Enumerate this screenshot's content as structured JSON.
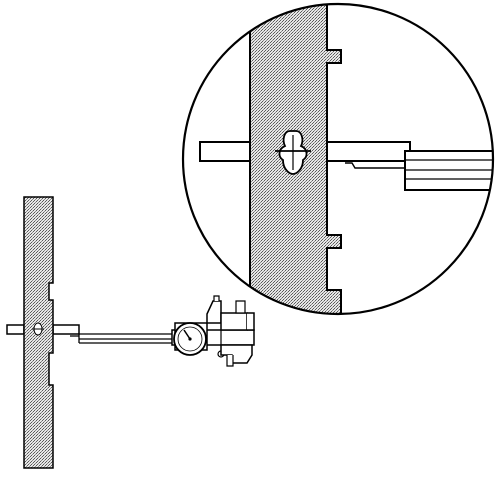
{
  "diagram": {
    "subject": "caliper-measuring-slotted-shaft",
    "colors": {
      "line": "#000000",
      "fill": "#ffffff",
      "hatch": "#5a5a5a",
      "hatch_bg": "#e6e6e6"
    },
    "icons": [
      "dial-caliper-icon",
      "slotted-bar-icon",
      "magnifier-circle-icon"
    ]
  }
}
